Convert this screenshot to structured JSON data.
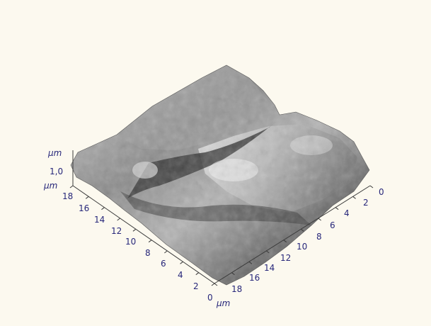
{
  "image": {
    "subject": "3D AFM topography surface",
    "colors": {
      "background": "#fcf9ef",
      "axis_text": "#27277a",
      "axis_line": "#3a3a3a"
    }
  },
  "axes": {
    "z": {
      "unit": "µm",
      "tick_label": "1,0"
    },
    "left": {
      "unit": "µm",
      "ticks": [
        "18",
        "16",
        "14",
        "12",
        "10",
        "8",
        "6",
        "4",
        "2",
        "0"
      ]
    },
    "bottom": {
      "unit": "µm",
      "ticks": [
        "18",
        "16",
        "14",
        "12",
        "10",
        "8",
        "6",
        "4",
        "2",
        "0"
      ]
    }
  }
}
